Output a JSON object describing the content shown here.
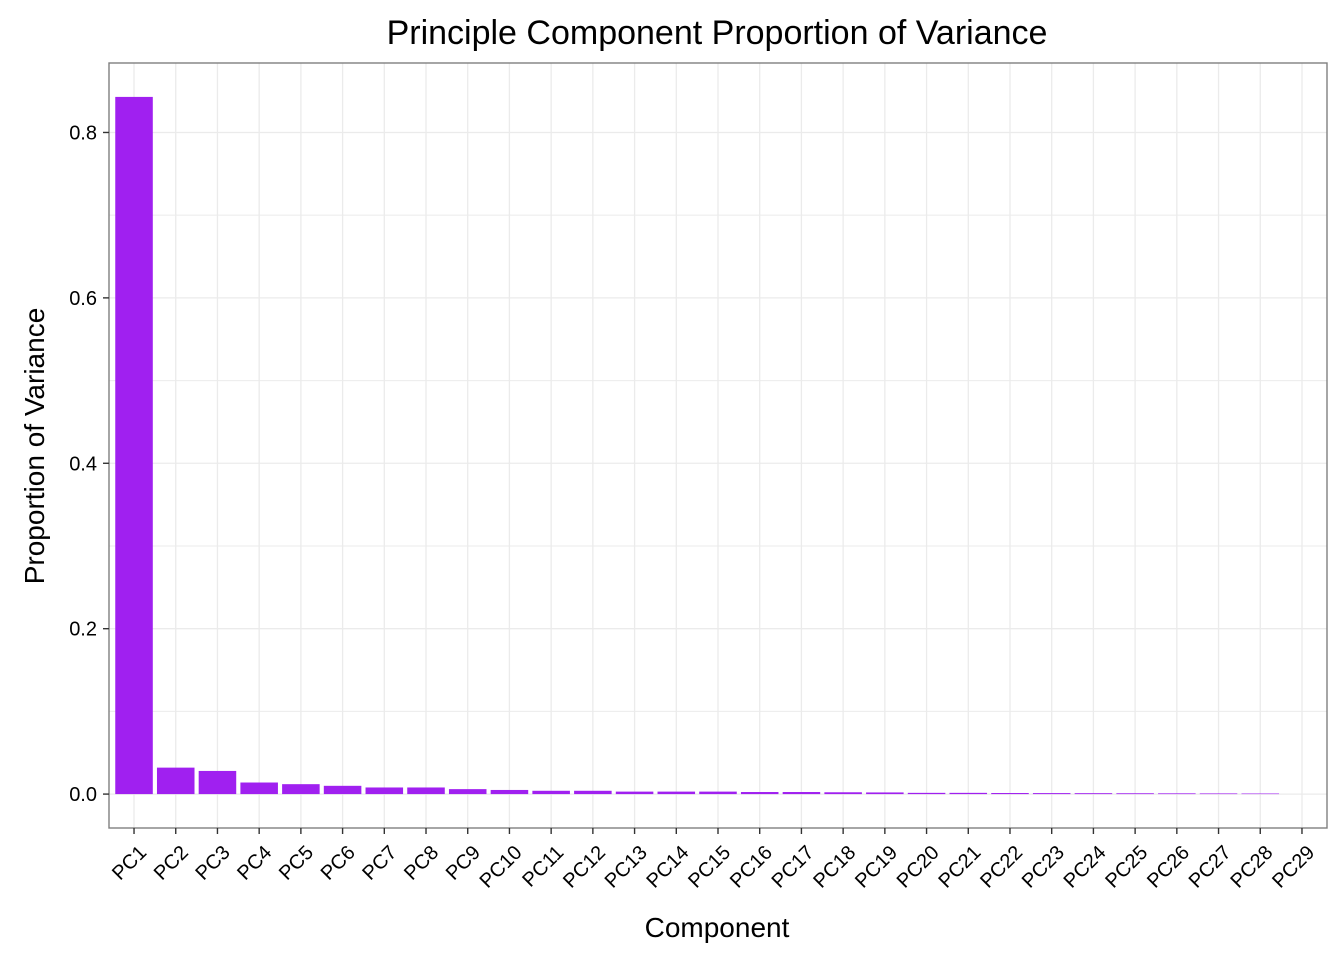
{
  "chart_data": {
    "type": "bar",
    "title": "Principle Component Proportion of Variance",
    "xlabel": "Component",
    "ylabel": "Proportion of Variance",
    "categories": [
      "PC1",
      "PC2",
      "PC3",
      "PC4",
      "PC5",
      "PC6",
      "PC7",
      "PC8",
      "PC9",
      "PC10",
      "PC11",
      "PC12",
      "PC13",
      "PC14",
      "PC15",
      "PC16",
      "PC17",
      "PC18",
      "PC19",
      "PC20",
      "PC21",
      "PC22",
      "PC23",
      "PC24",
      "PC25",
      "PC26",
      "PC27",
      "PC28",
      "PC29"
    ],
    "values": [
      0.843,
      0.032,
      0.028,
      0.014,
      0.012,
      0.01,
      0.008,
      0.008,
      0.006,
      0.005,
      0.004,
      0.004,
      0.003,
      0.003,
      0.003,
      0.0025,
      0.0025,
      0.0022,
      0.002,
      0.0015,
      0.0015,
      0.0013,
      0.0012,
      0.0011,
      0.001,
      0.0009,
      0.0008,
      0.0007,
      0.0
    ],
    "ylim": [
      -0.041,
      0.884
    ],
    "yticks": [
      0.0,
      0.2,
      0.4,
      0.6,
      0.8
    ],
    "ytick_labels": [
      "0.0",
      "0.2",
      "0.4",
      "0.6",
      "0.8"
    ],
    "grid": true,
    "bar_color": "#a020f0",
    "panel_border_color": "#7f7f7f",
    "grid_color": "#ebebeb"
  }
}
